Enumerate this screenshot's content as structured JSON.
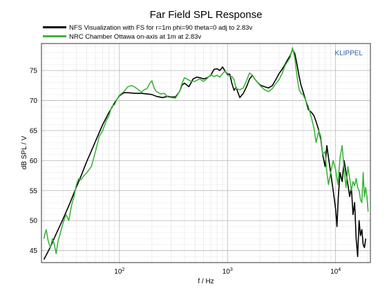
{
  "chart_data": {
    "type": "line",
    "title": "Far Field SPL Response",
    "xlabel": "f / Hz",
    "ylabel": "dB SPL / V",
    "xscale": "log",
    "xlim": [
      19,
      21000
    ],
    "ylim": [
      43,
      79.5
    ],
    "grid": true,
    "legend_position": "top-left, above plot",
    "watermark": "KLIPPEL",
    "watermark_color": "#2e5fa8",
    "x_ticks": [
      {
        "value": 100,
        "base": "10",
        "exp": "2"
      },
      {
        "value": 1000,
        "base": "10",
        "exp": "3"
      },
      {
        "value": 10000,
        "base": "10",
        "exp": "4"
      }
    ],
    "y_ticks": [
      {
        "value": 45,
        "label": "45"
      },
      {
        "value": 50,
        "label": "50"
      },
      {
        "value": 55,
        "label": "55"
      },
      {
        "value": 60,
        "label": "60"
      },
      {
        "value": 65,
        "label": "65"
      },
      {
        "value": 70,
        "label": "70"
      },
      {
        "value": 75,
        "label": "75"
      }
    ],
    "series": [
      {
        "name": "NFS Visualization with FS for r=1m phi=90 theta=0 adj to 2.83v",
        "color": "#000000",
        "points": [
          [
            20,
            43.5
          ],
          [
            23,
            45.6
          ],
          [
            26,
            47.8
          ],
          [
            30,
            50.2
          ],
          [
            35,
            53.0
          ],
          [
            40,
            55.6
          ],
          [
            45,
            57.8
          ],
          [
            50,
            59.9
          ],
          [
            55,
            61.6
          ],
          [
            60,
            63.2
          ],
          [
            70,
            66.0
          ],
          [
            80,
            68.0
          ],
          [
            90,
            69.6
          ],
          [
            100,
            70.8
          ],
          [
            110,
            71.3
          ],
          [
            120,
            71.3
          ],
          [
            140,
            71.2
          ],
          [
            160,
            71.2
          ],
          [
            180,
            71.1
          ],
          [
            200,
            71.0
          ],
          [
            220,
            70.7
          ],
          [
            250,
            70.5
          ],
          [
            280,
            70.7
          ],
          [
            300,
            70.6
          ],
          [
            330,
            70.6
          ],
          [
            360,
            71.5
          ],
          [
            380,
            72.6
          ],
          [
            400,
            72.9
          ],
          [
            440,
            72.3
          ],
          [
            480,
            73.6
          ],
          [
            520,
            73.9
          ],
          [
            560,
            73.8
          ],
          [
            600,
            73.6
          ],
          [
            650,
            73.8
          ],
          [
            700,
            74.2
          ],
          [
            750,
            75.2
          ],
          [
            800,
            75.3
          ],
          [
            850,
            75.0
          ],
          [
            900,
            75.6
          ],
          [
            950,
            74.9
          ],
          [
            1000,
            74.4
          ],
          [
            1050,
            74.4
          ],
          [
            1100,
            72.8
          ],
          [
            1150,
            71.7
          ],
          [
            1200,
            72.2
          ],
          [
            1300,
            70.5
          ],
          [
            1400,
            71.2
          ],
          [
            1500,
            72.3
          ],
          [
            1600,
            73.6
          ],
          [
            1700,
            74.2
          ],
          [
            1800,
            73.5
          ],
          [
            2000,
            72.6
          ],
          [
            2200,
            72.3
          ],
          [
            2400,
            72.1
          ],
          [
            2600,
            72.5
          ],
          [
            2800,
            73.5
          ],
          [
            3000,
            74.5
          ],
          [
            3200,
            75.2
          ],
          [
            3400,
            76.0
          ],
          [
            3600,
            76.8
          ],
          [
            3800,
            77.5
          ],
          [
            4000,
            78.5
          ],
          [
            4200,
            77.8
          ],
          [
            4400,
            76.0
          ],
          [
            4600,
            74.0
          ],
          [
            4800,
            72.5
          ],
          [
            5000,
            71.5
          ],
          [
            5300,
            70.0
          ],
          [
            5600,
            68.5
          ],
          [
            6000,
            68.0
          ],
          [
            6300,
            67.5
          ],
          [
            6600,
            66.5
          ],
          [
            7000,
            65.0
          ],
          [
            7300,
            63.5
          ],
          [
            7600,
            61.0
          ],
          [
            8000,
            59.0
          ],
          [
            8300,
            62.5
          ],
          [
            8600,
            60.5
          ],
          [
            9000,
            58.0
          ],
          [
            9500,
            55.0
          ],
          [
            10000,
            52.0
          ],
          [
            10300,
            49.0
          ],
          [
            10600,
            54.0
          ],
          [
            11000,
            58.0
          ],
          [
            11500,
            56.5
          ],
          [
            12000,
            60.0
          ],
          [
            12500,
            58.0
          ],
          [
            13000,
            56.0
          ],
          [
            13500,
            54.0
          ],
          [
            14000,
            55.5
          ],
          [
            14500,
            51.0
          ],
          [
            15000,
            53.0
          ],
          [
            15500,
            47.0
          ],
          [
            16000,
            44.0
          ],
          [
            16500,
            50.0
          ],
          [
            17000,
            47.5
          ],
          [
            17500,
            48.5
          ],
          [
            18000,
            46.0
          ],
          [
            18500,
            45.5
          ],
          [
            19000,
            47.0
          ]
        ]
      },
      {
        "name": "NRC Chamber Ottawa on-axis at 1m at 2.83v",
        "color": "#3cb43c",
        "points": [
          [
            20,
            47.0
          ],
          [
            21,
            48.5
          ],
          [
            22,
            46.5
          ],
          [
            23,
            45.5
          ],
          [
            24,
            47.0
          ],
          [
            25,
            46.0
          ],
          [
            26,
            44.5
          ],
          [
            27,
            46.5
          ],
          [
            28,
            47.5
          ],
          [
            30,
            49.5
          ],
          [
            32,
            51.0
          ],
          [
            34,
            50.0
          ],
          [
            36,
            52.5
          ],
          [
            38,
            54.0
          ],
          [
            40,
            56.0
          ],
          [
            42,
            57.0
          ],
          [
            44,
            56.8
          ],
          [
            47,
            57.5
          ],
          [
            50,
            58.0
          ],
          [
            55,
            59.0
          ],
          [
            60,
            61.5
          ],
          [
            65,
            64.0
          ],
          [
            70,
            65.0
          ],
          [
            75,
            66.5
          ],
          [
            80,
            67.5
          ],
          [
            85,
            69.0
          ],
          [
            90,
            69.3
          ],
          [
            95,
            70.2
          ],
          [
            100,
            70.9
          ],
          [
            110,
            71.5
          ],
          [
            120,
            72.3
          ],
          [
            130,
            72.5
          ],
          [
            140,
            72.2
          ],
          [
            150,
            71.8
          ],
          [
            160,
            71.4
          ],
          [
            170,
            71.8
          ],
          [
            180,
            72.0
          ],
          [
            190,
            72.8
          ],
          [
            200,
            73.3
          ],
          [
            210,
            72.0
          ],
          [
            220,
            71.5
          ],
          [
            240,
            71.1
          ],
          [
            260,
            71.2
          ],
          [
            280,
            70.6
          ],
          [
            300,
            70.5
          ],
          [
            330,
            70.4
          ],
          [
            360,
            71.5
          ],
          [
            380,
            72.9
          ],
          [
            400,
            73.8
          ],
          [
            430,
            73.5
          ],
          [
            460,
            73.2
          ],
          [
            500,
            73.2
          ],
          [
            550,
            73.6
          ],
          [
            600,
            73.2
          ],
          [
            650,
            73.7
          ],
          [
            700,
            74.3
          ],
          [
            750,
            74.0
          ],
          [
            800,
            74.2
          ],
          [
            850,
            73.9
          ],
          [
            900,
            74.5
          ],
          [
            950,
            74.9
          ],
          [
            1000,
            74.2
          ],
          [
            1050,
            74.1
          ],
          [
            1100,
            74.0
          ],
          [
            1150,
            73.5
          ],
          [
            1200,
            72.0
          ],
          [
            1300,
            71.8
          ],
          [
            1400,
            72.1
          ],
          [
            1500,
            73.3
          ],
          [
            1600,
            74.6
          ],
          [
            1700,
            74.2
          ],
          [
            1800,
            73.5
          ],
          [
            1900,
            73.0
          ],
          [
            2000,
            72.5
          ],
          [
            2200,
            71.8
          ],
          [
            2400,
            71.5
          ],
          [
            2600,
            72.0
          ],
          [
            2800,
            72.8
          ],
          [
            3000,
            73.5
          ],
          [
            3200,
            74.5
          ],
          [
            3400,
            75.8
          ],
          [
            3600,
            76.5
          ],
          [
            3800,
            77.2
          ],
          [
            4000,
            78.8
          ],
          [
            4200,
            77.0
          ],
          [
            4400,
            74.0
          ],
          [
            4600,
            71.8
          ],
          [
            4800,
            71.2
          ],
          [
            5000,
            71.0
          ],
          [
            5300,
            70.0
          ],
          [
            5600,
            69.0
          ],
          [
            6000,
            67.0
          ],
          [
            6300,
            65.5
          ],
          [
            6600,
            63.0
          ],
          [
            7000,
            65.0
          ],
          [
            7300,
            64.0
          ],
          [
            7600,
            61.0
          ],
          [
            8000,
            61.5
          ],
          [
            8300,
            58.0
          ],
          [
            8600,
            56.0
          ],
          [
            9000,
            58.0
          ],
          [
            9500,
            60.0
          ],
          [
            10000,
            58.5
          ],
          [
            10500,
            56.0
          ],
          [
            11000,
            60.5
          ],
          [
            11500,
            62.5
          ],
          [
            12000,
            58.5
          ],
          [
            12500,
            55.5
          ],
          [
            13000,
            59.0
          ],
          [
            13500,
            57.0
          ],
          [
            14000,
            55.0
          ],
          [
            14500,
            56.5
          ],
          [
            15000,
            55.8
          ],
          [
            15500,
            57.0
          ],
          [
            16000,
            55.5
          ],
          [
            16500,
            55.0
          ],
          [
            17000,
            53.5
          ],
          [
            17500,
            53.0
          ],
          [
            18000,
            58.0
          ],
          [
            18500,
            54.0
          ],
          [
            19000,
            55.5
          ],
          [
            19500,
            54.0
          ],
          [
            20000,
            51.5
          ]
        ]
      }
    ]
  }
}
